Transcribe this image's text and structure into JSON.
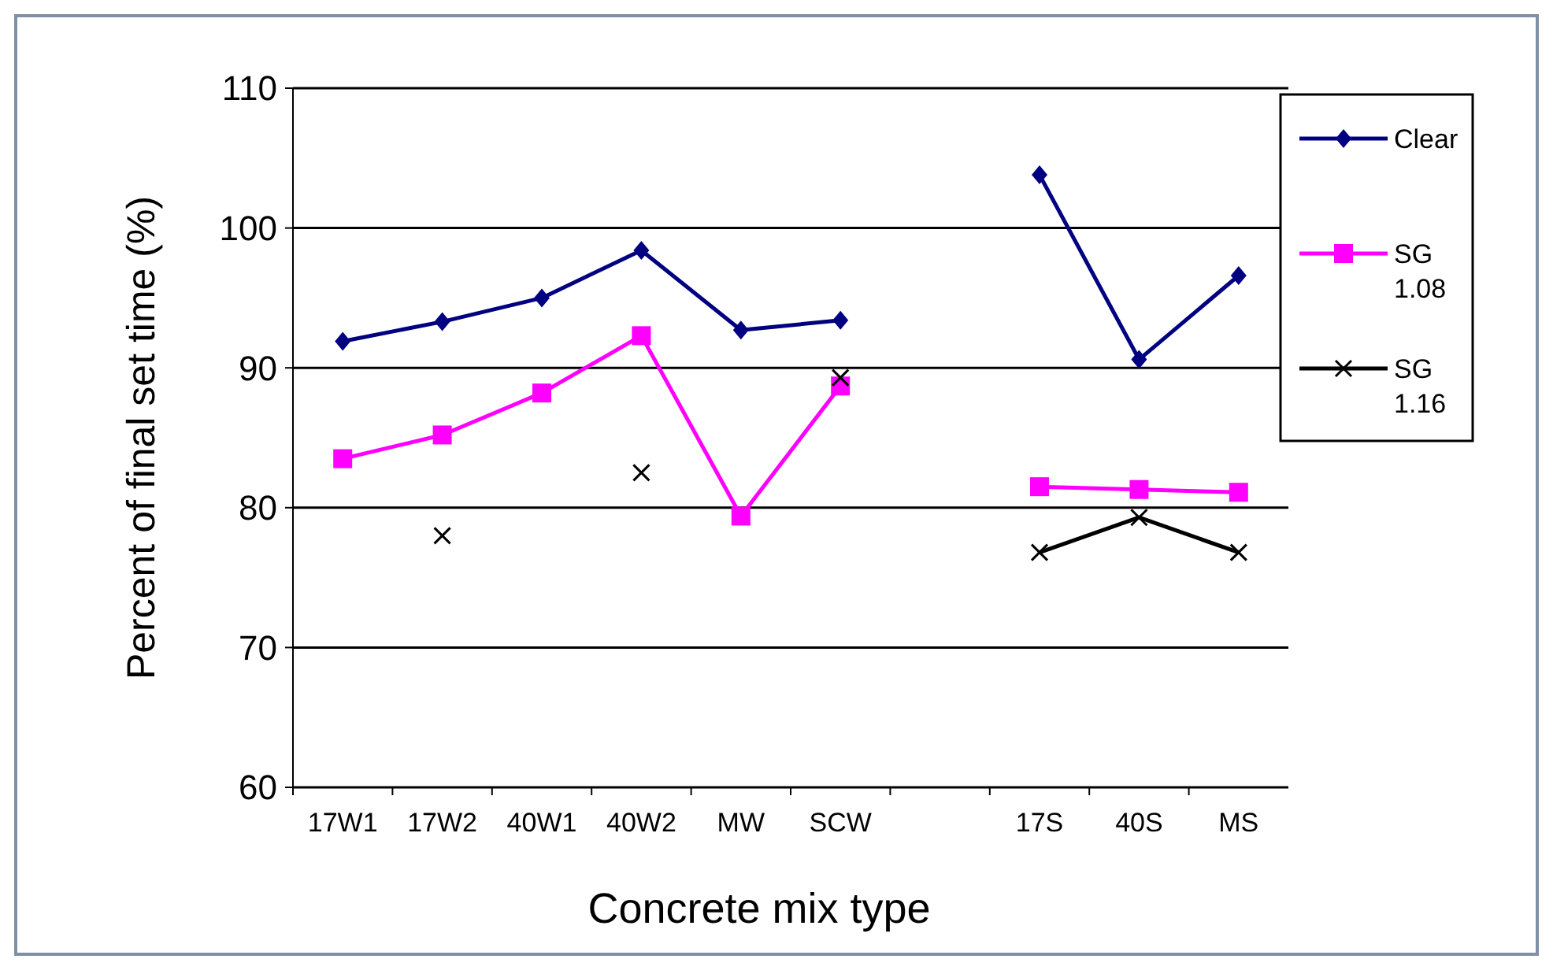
{
  "chart_data": {
    "type": "line",
    "xlabel": "Concrete mix type",
    "ylabel": "Percent of final set time (%)",
    "categories": [
      "17W1",
      "17W2",
      "40W1",
      "40W2",
      "MW",
      "SCW",
      null,
      "17S",
      "40S",
      "MS"
    ],
    "series": [
      {
        "name": "Clear",
        "color": "#000080",
        "marker": "diamond",
        "values": [
          91.9,
          93.3,
          95.0,
          98.4,
          92.7,
          93.4,
          null,
          103.8,
          90.6,
          96.6
        ]
      },
      {
        "name": "SG 1.08",
        "color": "#ff00ff",
        "marker": "square",
        "values": [
          83.5,
          85.2,
          88.2,
          92.3,
          79.4,
          88.7,
          null,
          81.5,
          81.3,
          81.1
        ]
      },
      {
        "name": "SG 1.16",
        "color": "#000000",
        "marker": "cross",
        "values": [
          null,
          78.0,
          null,
          82.5,
          null,
          89.3,
          null,
          76.8,
          79.3,
          76.8
        ]
      }
    ],
    "ylim": [
      60,
      110
    ],
    "yticks": [
      60,
      70,
      80,
      90,
      100,
      110
    ],
    "grid": "y",
    "legend": "right",
    "line_style": "solid"
  }
}
